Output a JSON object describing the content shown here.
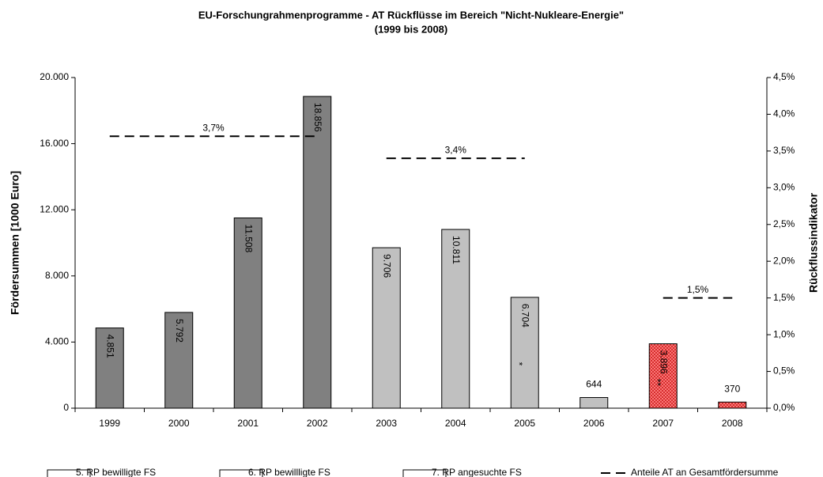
{
  "chart_data": {
    "type": "bar",
    "title": "EU-Forschungrahmenprogramme - AT Rückflüsse im Bereich \"Nicht-Nukleare-Energie\"",
    "subtitle": "(1999 bis 2008)",
    "y_label": "Fördersummen [1000 Euro]",
    "y2_label": "Rückflussindikator",
    "categories": [
      "1999",
      "2000",
      "2001",
      "2002",
      "2003",
      "2004",
      "2005",
      "2006",
      "2007",
      "2008"
    ],
    "ylim": [
      0,
      20000
    ],
    "yticks": [
      0,
      {
        "value": 4000,
        "label": "4.000"
      },
      {
        "value": 8000,
        "label": "8.000"
      },
      {
        "value": 12000,
        "label": "12.000"
      },
      {
        "value": 16000,
        "label": "16.000"
      },
      {
        "value": 20000,
        "label": "20.000"
      }
    ],
    "y2lim": [
      0,
      4.5
    ],
    "y2ticks": [
      {
        "value": 0,
        "label": "0,0%"
      },
      {
        "value": 0.5,
        "label": "0,5%"
      },
      {
        "value": 1,
        "label": "1,0%"
      },
      {
        "value": 1.5,
        "label": "1,5%"
      },
      {
        "value": 2,
        "label": "2,0%"
      },
      {
        "value": 2.5,
        "label": "2,5%"
      },
      {
        "value": 3,
        "label": "3,0%"
      },
      {
        "value": 3.5,
        "label": "3,5%"
      },
      {
        "value": 4,
        "label": "4,0%"
      },
      {
        "value": 4.5,
        "label": "4,5%"
      }
    ],
    "series": [
      {
        "name": "5. RP bewilligte FS",
        "color": "#808080",
        "values": [
          4851,
          5792,
          11508,
          18856,
          null,
          null,
          null,
          null,
          null,
          null
        ],
        "value_labels": [
          "4.851",
          "5.792",
          "11.508",
          "18.856",
          null,
          null,
          null,
          null,
          null,
          null
        ]
      },
      {
        "name": "6. RP bewillligte FS",
        "color": "#c0c0c0",
        "values": [
          null,
          null,
          null,
          null,
          9706,
          10811,
          6704,
          644,
          null,
          null
        ],
        "value_labels": [
          null,
          null,
          null,
          null,
          "9.706",
          "10.811",
          "6.704",
          "644",
          null,
          null
        ]
      },
      {
        "name": "7. RP angesuchte FS",
        "color": "#ff8080",
        "pattern": "hatch",
        "values": [
          null,
          null,
          null,
          null,
          null,
          null,
          null,
          null,
          3896,
          370
        ],
        "value_labels": [
          null,
          null,
          null,
          null,
          null,
          null,
          null,
          null,
          "3.896",
          "370"
        ]
      },
      {
        "name": "Anteile AT an Gesamtfördersumme",
        "type": "line",
        "axis": "y2",
        "color": "#000000",
        "values": [
          3.7,
          3.7,
          3.7,
          3.7,
          3.4,
          3.4,
          3.4,
          null,
          1.5,
          1.5
        ],
        "value_labels": [
          "3,7%",
          null,
          null,
          null,
          "3,4%",
          null,
          null,
          null,
          "1,5%",
          null
        ]
      }
    ],
    "annotations": [
      {
        "text": "*",
        "x": "2005"
      },
      {
        "text": "**",
        "x": "2007"
      }
    ]
  }
}
